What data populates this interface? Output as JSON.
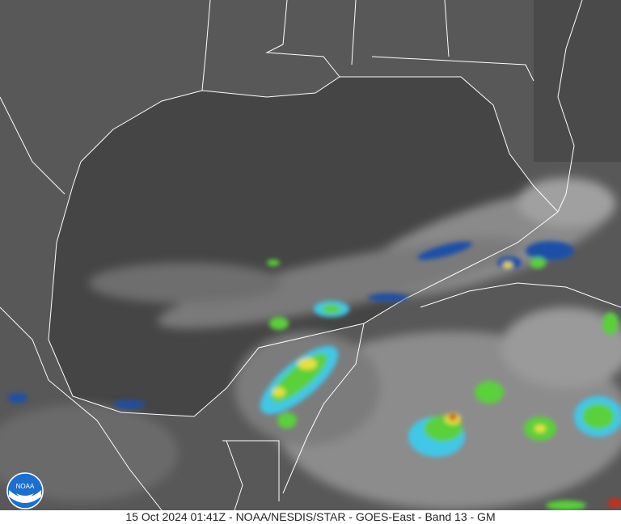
{
  "caption": "15 Oct 2024 01:41Z - NOAA/NESDIS/STAR - GOES-East - Band 13 - GM",
  "logo": {
    "text": "NOAA",
    "icon": "noaa-logo"
  },
  "colors": {
    "ocean": "#454545",
    "land": "#575757",
    "cloud": "#b8b8b8",
    "border": "#ffffff",
    "storm_cyan": "#3fc8e8",
    "storm_blue": "#1f4fa8",
    "storm_green": "#5ad03a",
    "storm_yellow": "#e8e040",
    "storm_red": "#d02a1a"
  }
}
